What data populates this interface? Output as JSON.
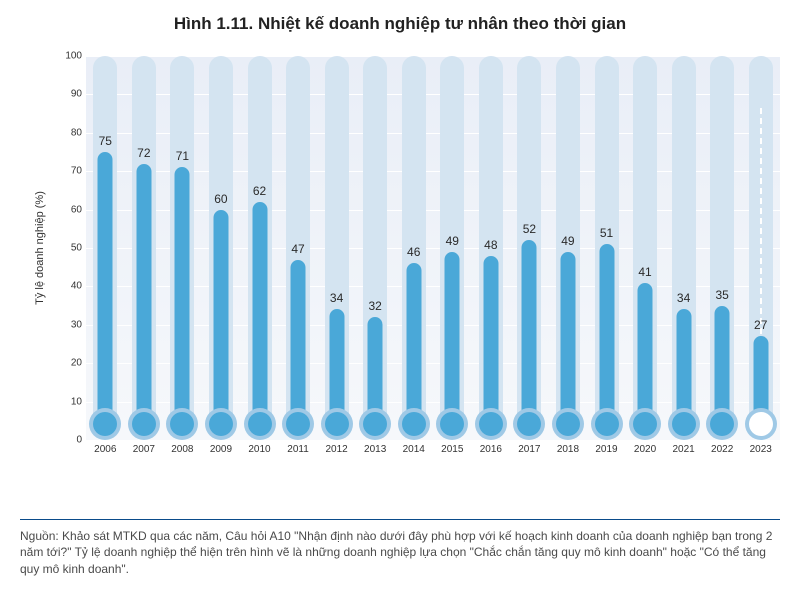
{
  "title": {
    "text": "Hình 1.11. Nhiệt kế doanh nghiệp tư nhân theo thời gian",
    "fontsize": 17,
    "color": "#222222",
    "weight": "bold"
  },
  "chart": {
    "type": "thermometer-bar",
    "background_gradient_top": "#e9eef7",
    "background_gradient_bottom": "#f6f8fb",
    "grid_color": "#ffffff",
    "ylabel": "Tỷ lệ doanh nghiệp (%)",
    "ylabel_fontsize": 11,
    "ylim": [
      0,
      100
    ],
    "ytick_step": 10,
    "tick_fontsize": 10,
    "xlabel_fontsize": 10,
    "value_label_fontsize": 12,
    "years": [
      "2006",
      "2007",
      "2008",
      "2009",
      "2010",
      "2011",
      "2012",
      "2013",
      "2014",
      "2015",
      "2016",
      "2017",
      "2018",
      "2019",
      "2020",
      "2021",
      "2022",
      "2023"
    ],
    "values": [
      75,
      72,
      71,
      60,
      62,
      47,
      34,
      32,
      46,
      49,
      48,
      52,
      49,
      51,
      41,
      34,
      35,
      27
    ],
    "highlight_last": true,
    "tube_outer_width": 24,
    "tube_inner_width": 15,
    "bulb_outer_diameter": 32,
    "bulb_inner_diameter": 24,
    "colors": {
      "tube_outer": "#d4e4f1",
      "tube_fill": "#4aa8d8",
      "bulb_outer": "#9fc9e6",
      "bulb_inner": "#4aa8d8",
      "bulb_inner_highlight": "#ffffff",
      "tube_outer_highlight": "#d4e4f1",
      "value_label": "#2a2a2a"
    }
  },
  "footer": {
    "rule_color": "#0a4b8a",
    "text": "Nguồn: Khảo sát MTKD qua các năm, Câu hỏi A10 \"Nhận định nào dưới đây phù hợp với kế hoạch kinh doanh của doanh nghiệp bạn trong 2 năm tới?\" Tỷ lệ doanh nghiệp thể hiện trên hình vẽ là những doanh nghiệp lựa chọn \"Chắc chắn tăng quy mô kinh doanh\" hoặc \"Có thể tăng quy mô kinh doanh\".",
    "fontsize": 12,
    "color": "#4a4a4a"
  }
}
